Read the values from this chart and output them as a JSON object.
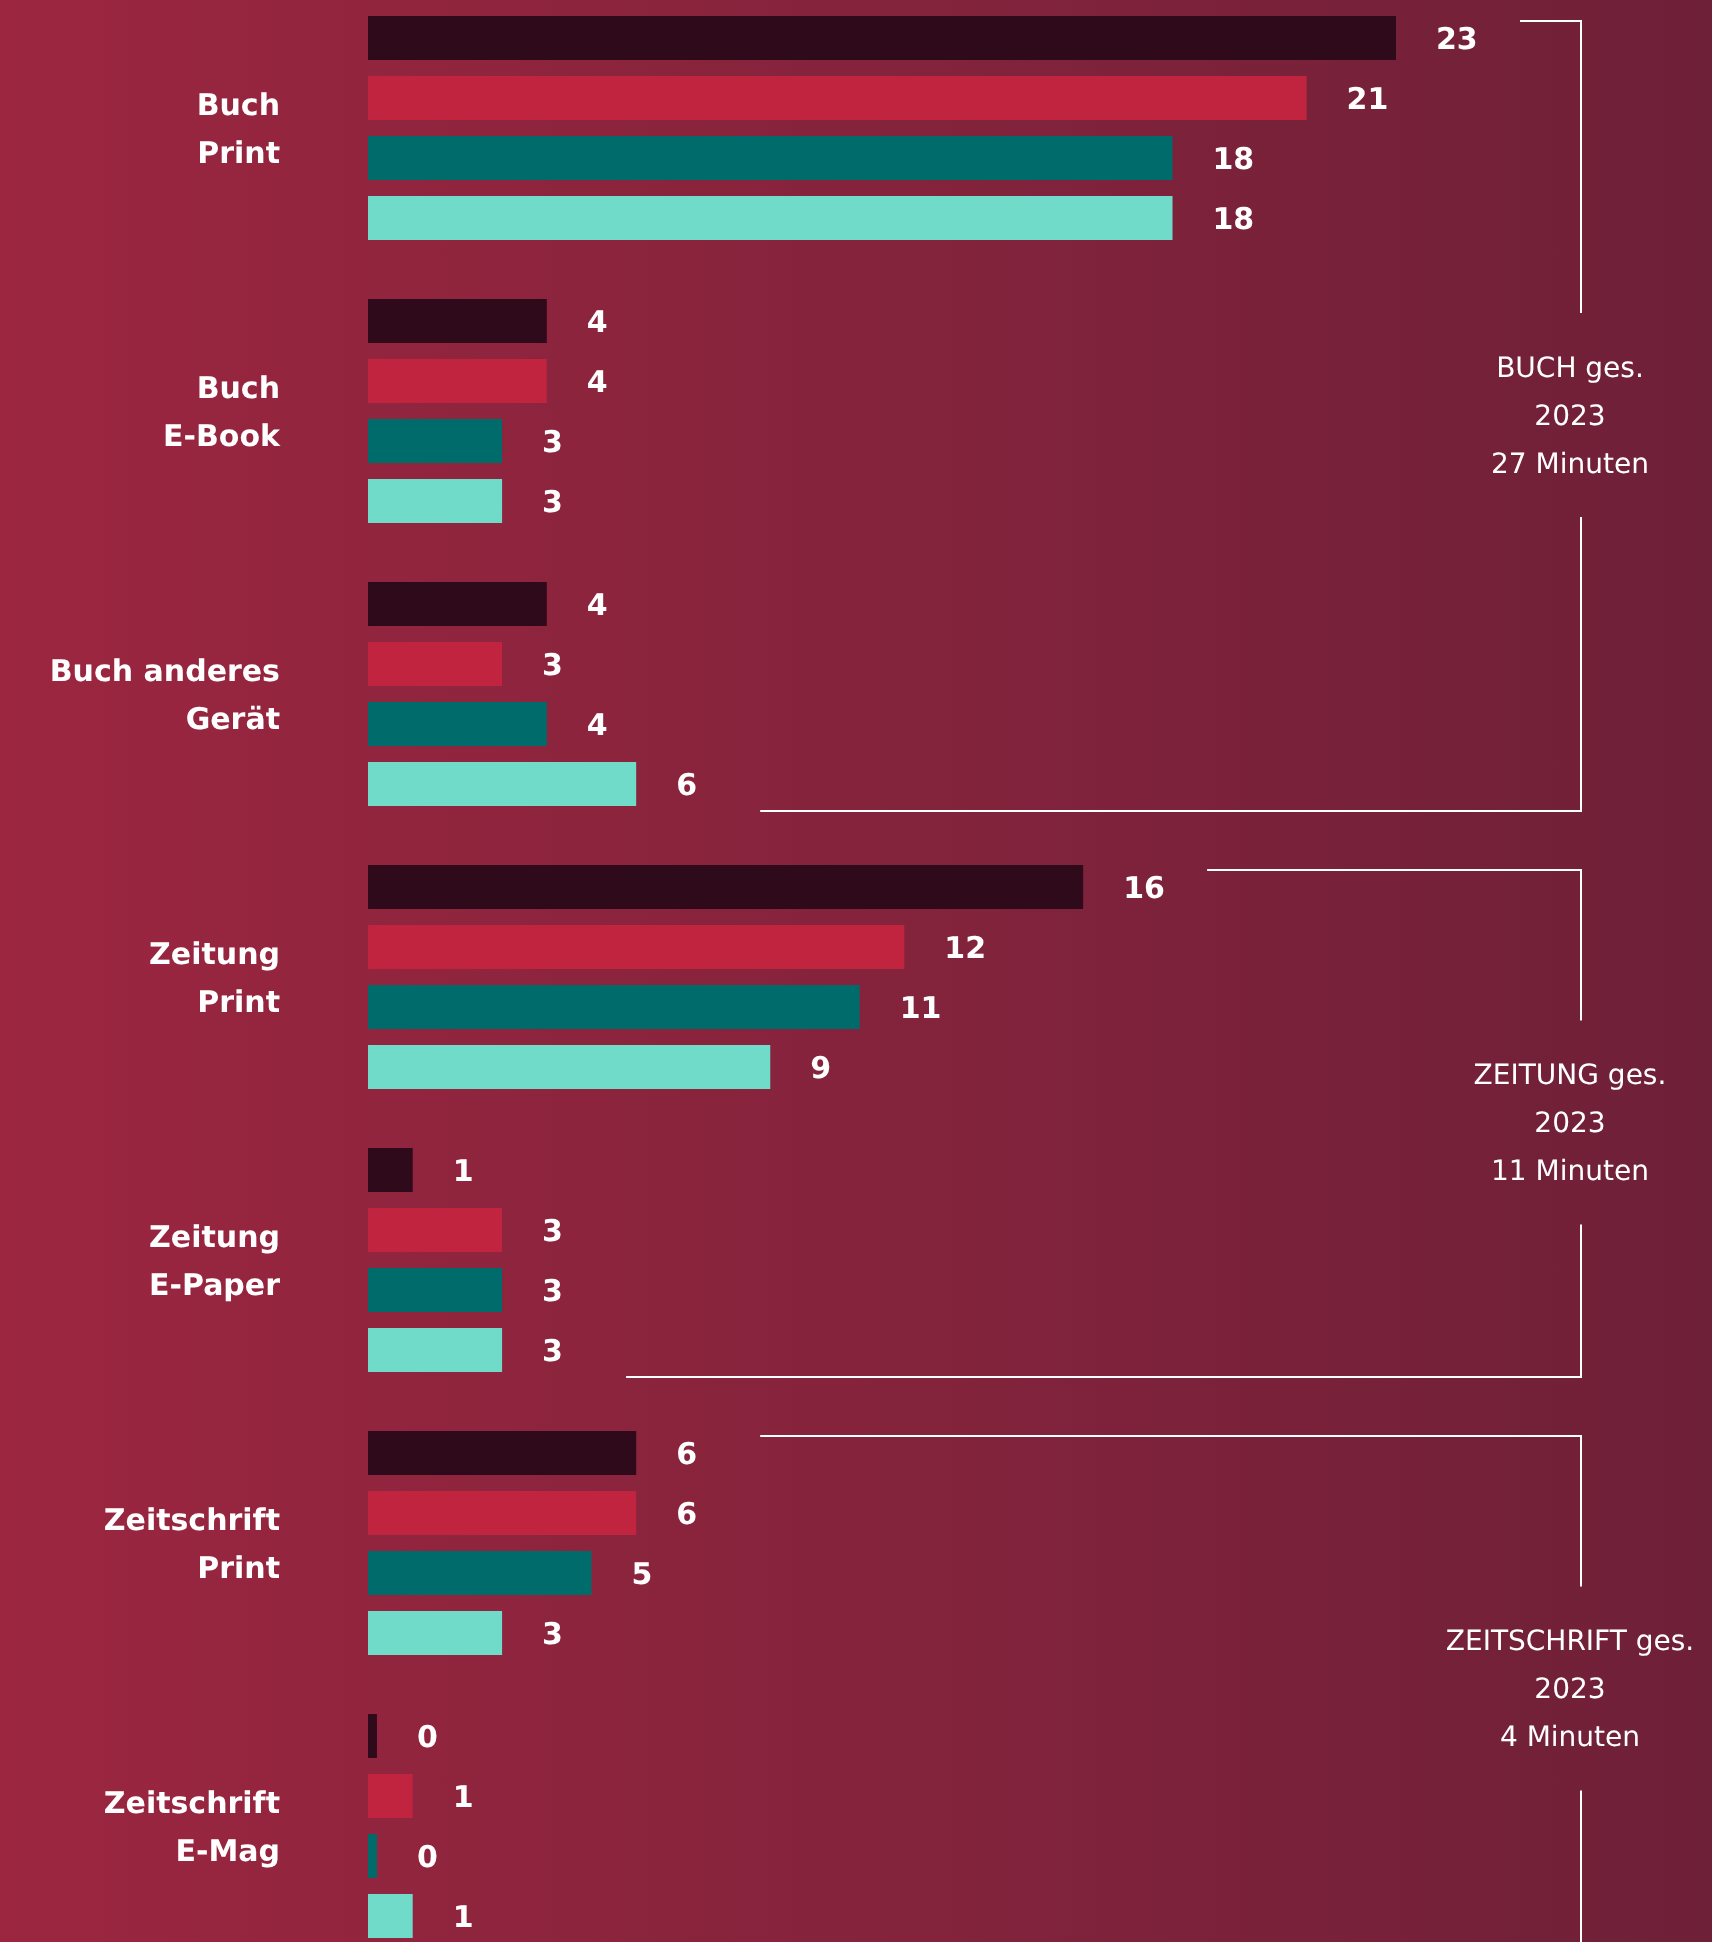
{
  "chart_data": {
    "type": "bar",
    "orientation": "horizontal",
    "categories": [
      "Buch\nPrint",
      "Buch\nE-Book",
      "Buch anderes\nGerät",
      "Zeitung\nPrint",
      "Zeitung\nE-Paper",
      "Zeitschrift\nPrint",
      "Zeitschrift\nE-Mag"
    ],
    "series": [
      {
        "color": "#2e0a1a",
        "values": [
          23,
          4,
          4,
          16,
          1,
          6,
          0.2
        ],
        "value_labels": [
          "23",
          "4",
          "4",
          "16",
          "1",
          "6",
          "0"
        ]
      },
      {
        "color": "#c0243f",
        "values": [
          21,
          4,
          3,
          12,
          3,
          6,
          1
        ],
        "value_labels": [
          "21",
          "4",
          "3",
          "12",
          "3",
          "6",
          "1"
        ]
      },
      {
        "color": "#006b6b",
        "values": [
          18,
          3,
          4,
          11,
          3,
          5,
          0.2
        ],
        "value_labels": [
          "18",
          "3",
          "4",
          "11",
          "3",
          "5",
          "0"
        ]
      },
      {
        "color": "#70dbc8",
        "values": [
          18,
          3,
          6,
          9,
          3,
          3,
          1
        ],
        "value_labels": [
          "18",
          "3",
          "6",
          "9",
          "3",
          "3",
          "1"
        ]
      }
    ],
    "annotations": [
      "BUCH ges.\n2023\n27 Minuten",
      "ZEITUNG ges.\n2023\n11 Minuten",
      "ZEITSCHRIFT ges.\n2023\n4 Minuten"
    ]
  }
}
